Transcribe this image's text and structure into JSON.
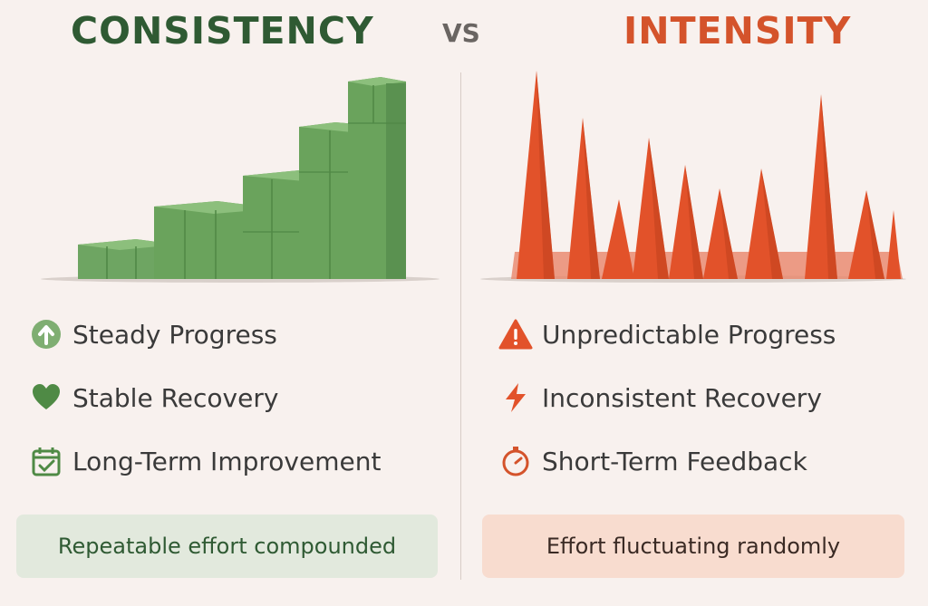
{
  "header": {
    "left_title": "CONSISTENCY",
    "vs": "VS",
    "right_title": "INTENSITY"
  },
  "left": {
    "items": [
      {
        "icon": "arrow-up-circle-icon",
        "label": "Steady Progress"
      },
      {
        "icon": "heart-icon",
        "label": "Stable Recovery"
      },
      {
        "icon": "calendar-check-icon",
        "label": "Long-Term Improvement"
      }
    ],
    "summary": "Repeatable effort compounded",
    "color": "#2f5a33",
    "accent": "#6aa35c"
  },
  "right": {
    "items": [
      {
        "icon": "warning-icon",
        "label": "Unpredictable Progress"
      },
      {
        "icon": "lightning-icon",
        "label": "Inconsistent Recovery"
      },
      {
        "icon": "stopwatch-icon",
        "label": "Short-Term Feedback"
      }
    ],
    "summary": "Effort fluctuating randomly",
    "color": "#d4532b",
    "accent": "#e2522a"
  }
}
